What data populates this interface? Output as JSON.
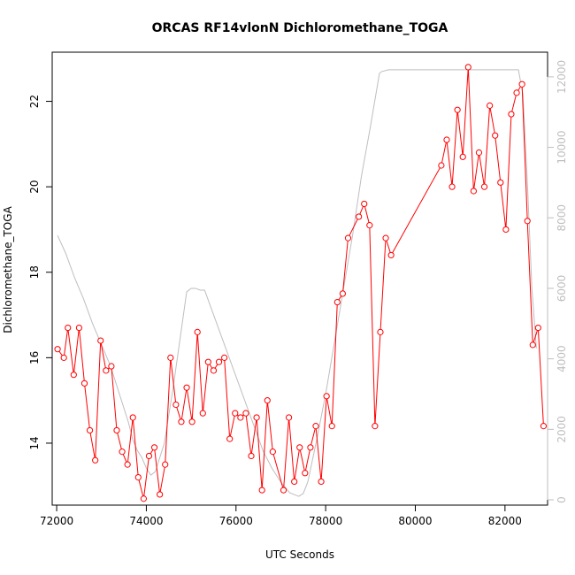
{
  "chart_data": {
    "type": "line",
    "title": "ORCAS RF14vlonN Dichloromethane_TOGA",
    "xlabel": "UTC Seconds",
    "ylabel": "Dichloromethane_TOGA",
    "xlim": [
      71900,
      82950
    ],
    "ylim": [
      12.55,
      23.15
    ],
    "y2lim": [
      -150,
      12700
    ],
    "x_ticks": [
      72000,
      74000,
      76000,
      78000,
      80000,
      82000
    ],
    "y_ticks": [
      14,
      16,
      18,
      20,
      22
    ],
    "y2_ticks": [
      0,
      2000,
      4000,
      6000,
      8000,
      10000,
      12000
    ],
    "grid": false,
    "legend": "none",
    "colors": {
      "primary": "#ff0000",
      "secondary": "#bebebe"
    },
    "series": [
      {
        "axis": "left",
        "marker": "open-circle",
        "x": [
          72020,
          72160,
          72250,
          72380,
          72500,
          72620,
          72740,
          72860,
          72980,
          73100,
          73220,
          73340,
          73460,
          73580,
          73700,
          73820,
          73940,
          74060,
          74180,
          74300,
          74420,
          74540,
          74660,
          74780,
          74900,
          75020,
          75140,
          75260,
          75380,
          75500,
          75620,
          75740,
          75860,
          75980,
          76100,
          76220,
          76340,
          76460,
          76580,
          76700,
          76820,
          77060,
          77180,
          77300,
          77420,
          77540,
          77660,
          77780,
          77900,
          78020,
          78140,
          78260,
          78380,
          78500,
          78740,
          78860,
          78980,
          79100,
          79220,
          79340,
          79460,
          80580,
          80700,
          80820,
          80940,
          81060,
          81180,
          81300,
          81420,
          81540,
          81660,
          81780,
          81900,
          82020,
          82140,
          82260,
          82380,
          82500,
          82620,
          82740,
          82860
        ],
        "y": [
          16.2,
          16.0,
          16.7,
          15.6,
          16.7,
          15.4,
          14.3,
          13.6,
          16.4,
          15.7,
          15.8,
          14.3,
          13.8,
          13.5,
          14.6,
          13.2,
          12.7,
          13.7,
          13.9,
          12.8,
          13.5,
          16.0,
          14.9,
          14.5,
          15.3,
          14.5,
          16.6,
          14.7,
          15.9,
          15.7,
          15.9,
          16.0,
          14.1,
          14.7,
          14.6,
          14.7,
          13.7,
          14.6,
          12.9,
          15.0,
          13.8,
          12.9,
          14.6,
          13.1,
          13.9,
          13.3,
          13.9,
          14.4,
          13.1,
          15.1,
          14.4,
          17.3,
          17.5,
          18.8,
          19.3,
          19.6,
          19.1,
          14.4,
          16.6,
          18.8,
          18.4,
          20.5,
          21.1,
          20.0,
          21.8,
          20.7,
          22.8,
          19.9,
          20.8,
          20.0,
          21.9,
          21.2,
          20.1,
          19.0,
          21.7,
          22.2,
          22.4,
          19.2,
          16.3,
          16.7,
          14.4
        ]
      },
      {
        "axis": "right",
        "marker": "none",
        "x": [
          72020,
          72200,
          72400,
          72600,
          72800,
          73000,
          73200,
          73400,
          73600,
          73700,
          73800,
          73900,
          74000,
          74100,
          74200,
          74400,
          74600,
          74800,
          74900,
          75000,
          75100,
          75200,
          75300,
          75400,
          75600,
          75800,
          76000,
          76200,
          76400,
          76600,
          76800,
          77000,
          77200,
          77400,
          77500,
          77600,
          77800,
          78000,
          78200,
          78400,
          78600,
          78800,
          79000,
          79200,
          79250,
          79400,
          80000,
          80500,
          81000,
          81500,
          82000,
          82200,
          82300,
          82400,
          82500,
          82600,
          82700
        ],
        "y": [
          7500,
          7000,
          6300,
          5700,
          5000,
          4400,
          3800,
          3000,
          2200,
          1700,
          1400,
          1200,
          900,
          700,
          800,
          1600,
          3200,
          5000,
          5900,
          6000,
          6000,
          5950,
          5950,
          5600,
          4900,
          4200,
          3500,
          2800,
          2100,
          1400,
          900,
          500,
          200,
          100,
          180,
          500,
          1700,
          3000,
          4500,
          6000,
          7500,
          9200,
          10600,
          12100,
          12150,
          12200,
          12200,
          12200,
          12200,
          12200,
          12200,
          12200,
          12200,
          11500,
          9000,
          6000,
          4300
        ]
      }
    ]
  }
}
